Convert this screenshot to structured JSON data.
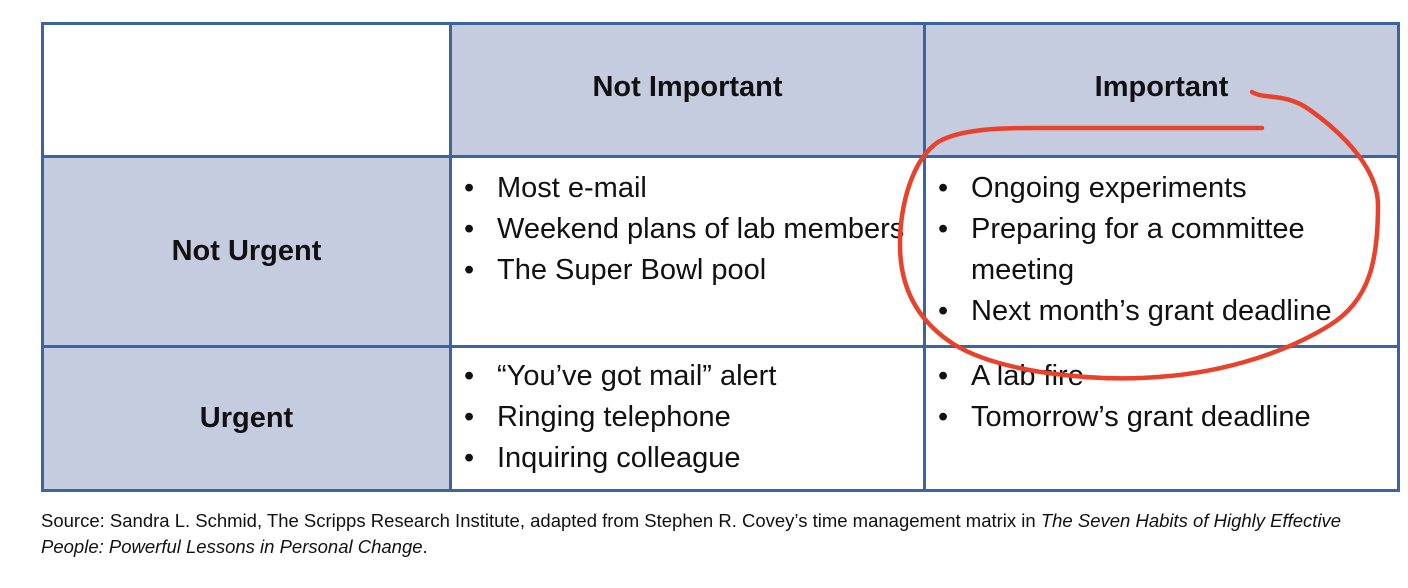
{
  "matrix": {
    "columns": [
      "",
      "Not Important",
      "Important"
    ],
    "rows": [
      {
        "label": "Not Urgent",
        "not_important": [
          "Most e-mail",
          "Weekend plans of lab members",
          "The Super Bowl pool"
        ],
        "important": [
          "Ongoing experiments",
          "Preparing for a committee meeting",
          "Next month’s grant deadline"
        ]
      },
      {
        "label": "Urgent",
        "not_important": [
          "“You’ve got mail” alert",
          "Ringing telephone",
          "Inquiring colleague"
        ],
        "important": [
          "A lab fire",
          "Tomorrow’s grant deadline"
        ]
      }
    ]
  },
  "source": {
    "prefix": "Source: Sandra L. Schmid, The Scripps Research Institute, adapted from Stephen R. Covey’s time management matrix in ",
    "title": "The Seven Habits of Highly Effective People: Powerful Lessons in Personal Change",
    "suffix": "."
  },
  "annotation": {
    "color": "#e8422c",
    "shape": "hand-drawn circle around Important / Not Urgent quadrant"
  }
}
